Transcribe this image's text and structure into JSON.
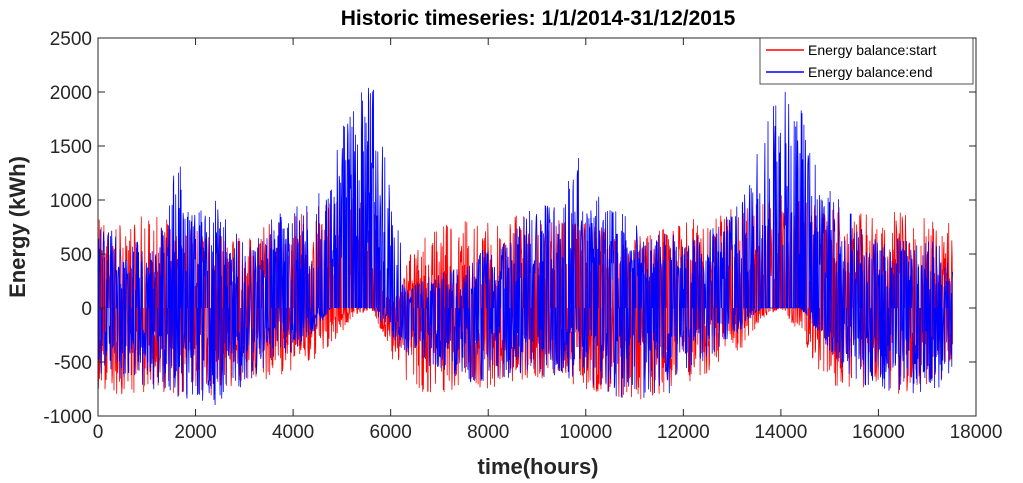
{
  "chart_data": {
    "type": "line",
    "title": "Historic timeseries: 1/1/2014-31/12/2015",
    "xlabel": "time(hours)",
    "ylabel": "Energy (kWh)",
    "xlim": [
      0,
      18000
    ],
    "ylim": [
      -1000,
      2500
    ],
    "xticks": [
      0,
      2000,
      4000,
      6000,
      8000,
      10000,
      12000,
      14000,
      16000,
      18000
    ],
    "yticks": [
      -1000,
      -500,
      0,
      500,
      1000,
      1500,
      2000,
      2500
    ],
    "xtick_labels": [
      "0",
      "2000",
      "4000",
      "6000",
      "8000",
      "10000",
      "12000",
      "14000",
      "16000",
      "18000"
    ],
    "ytick_labels": [
      "-1000",
      "-500",
      "0",
      "500",
      "1000",
      "1500",
      "2000",
      "2500"
    ],
    "grid": false,
    "legend_position": "top-right",
    "series": [
      {
        "name": "Energy balance:start",
        "color": "#ff0000",
        "x": [
          0,
          400,
          800,
          1200,
          1600,
          2000,
          2400,
          2800,
          3200,
          3600,
          4000,
          4400,
          4800,
          5200,
          5600,
          6000,
          6400,
          6800,
          7200,
          7600,
          8000,
          8400,
          8800,
          9200,
          9600,
          10000,
          10400,
          10800,
          11200,
          11600,
          12000,
          12400,
          12800,
          13200,
          13600,
          14000,
          14400,
          14800,
          15200,
          15600,
          16000,
          16400,
          16800,
          17200,
          17520
        ],
        "upper": [
          900,
          850,
          900,
          850,
          800,
          750,
          700,
          650,
          700,
          850,
          900,
          950,
          1000,
          1100,
          1100,
          0,
          500,
          700,
          800,
          850,
          800,
          850,
          900,
          850,
          800,
          800,
          750,
          700,
          700,
          750,
          800,
          850,
          900,
          950,
          1000,
          1100,
          1000,
          950,
          950,
          900,
          850,
          900,
          850,
          850,
          800
        ],
        "lower": [
          -750,
          -800,
          -800,
          -750,
          -850,
          -850,
          -800,
          -750,
          -700,
          -650,
          -600,
          -500,
          -350,
          -100,
          0,
          -450,
          -750,
          -800,
          -800,
          -750,
          -750,
          -700,
          -650,
          -650,
          -700,
          -750,
          -800,
          -850,
          -850,
          -800,
          -700,
          -650,
          -500,
          -400,
          -100,
          0,
          -250,
          -600,
          -750,
          -750,
          -800,
          -800,
          -750,
          -700,
          -600
        ]
      },
      {
        "name": "Energy balance:end",
        "color": "#0000ff",
        "x": [
          0,
          400,
          800,
          1200,
          1600,
          2000,
          2400,
          2800,
          3200,
          3600,
          4000,
          4400,
          4800,
          5200,
          5600,
          6000,
          6400,
          6800,
          7200,
          7600,
          8000,
          8400,
          8800,
          9200,
          9600,
          10000,
          10400,
          10800,
          11200,
          11600,
          12000,
          12400,
          12800,
          13200,
          13600,
          14000,
          14400,
          14800,
          15200,
          15600,
          16000,
          16400,
          16800,
          17200,
          17520
        ],
        "upper": [
          800,
          700,
          650,
          500,
          1500,
          900,
          1000,
          700,
          800,
          850,
          950,
          1000,
          1400,
          1900,
          2150,
          1100,
          200,
          300,
          350,
          400,
          600,
          600,
          900,
          1000,
          1100,
          1850,
          1000,
          900,
          700,
          800,
          600,
          700,
          900,
          1100,
          1700,
          2050,
          1900,
          1200,
          1000,
          800,
          600,
          650,
          700,
          600,
          500
        ],
        "lower": [
          -600,
          -650,
          -700,
          -800,
          -850,
          -900,
          -900,
          -800,
          -650,
          -500,
          -400,
          -250,
          0,
          0,
          0,
          -250,
          -500,
          -550,
          -600,
          -700,
          -700,
          -650,
          -600,
          -650,
          -650,
          -750,
          -800,
          -900,
          -900,
          -850,
          -700,
          -500,
          -350,
          -200,
          0,
          0,
          0,
          -250,
          -550,
          -700,
          -750,
          -800,
          -800,
          -750,
          -700
        ]
      }
    ]
  }
}
